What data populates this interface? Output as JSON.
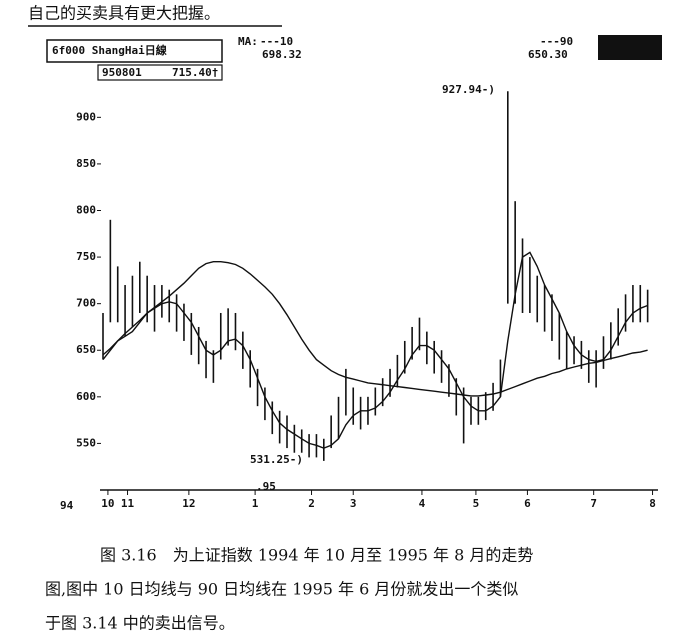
{
  "intro_text": "自己的买卖具有更大把握。",
  "chart_data": {
    "type": "range-bar",
    "header": {
      "symbol": "6f000  ShangHai日線",
      "date": "950801",
      "close": "715.40†",
      "ma_prefix": "MA:"
    },
    "year_labels": [
      "94",
      ".95"
    ],
    "annotations": [
      "927.94-)",
      "531.25-)"
    ],
    "x": [
      0,
      3,
      6,
      9,
      12,
      15,
      18,
      21,
      24,
      27,
      30,
      33,
      36,
      39,
      42,
      45,
      48,
      51,
      54,
      57,
      60,
      63,
      66,
      69,
      72,
      75,
      78,
      81,
      84,
      87,
      90,
      93,
      96,
      99,
      102,
      105,
      108,
      111,
      114,
      117,
      120,
      123,
      126,
      129,
      132,
      135,
      138,
      141,
      144,
      147,
      150,
      153,
      156,
      159,
      162,
      165,
      168,
      171,
      174,
      177,
      180,
      183,
      186,
      189,
      192,
      195,
      198,
      201,
      204,
      207,
      210,
      213,
      216,
      219,
      222
    ],
    "high": [
      690,
      790,
      740,
      720,
      730,
      745,
      730,
      720,
      720,
      715,
      710,
      700,
      690,
      675,
      660,
      650,
      690,
      695,
      690,
      670,
      650,
      630,
      610,
      595,
      585,
      580,
      570,
      565,
      560,
      560,
      555,
      580,
      600,
      630,
      610,
      600,
      600,
      610,
      620,
      630,
      645,
      660,
      675,
      685,
      670,
      660,
      650,
      635,
      620,
      610,
      600,
      600,
      605,
      615,
      640,
      927.94,
      810,
      770,
      750,
      730,
      720,
      710,
      690,
      670,
      665,
      660,
      650,
      650,
      665,
      680,
      695,
      710,
      720,
      720,
      715
    ],
    "low": [
      640,
      680,
      680,
      665,
      675,
      690,
      680,
      670,
      685,
      680,
      670,
      660,
      645,
      635,
      620,
      615,
      640,
      655,
      650,
      630,
      610,
      590,
      575,
      560,
      550,
      545,
      540,
      540,
      535,
      535,
      531.25,
      545,
      555,
      580,
      570,
      565,
      570,
      580,
      590,
      600,
      610,
      625,
      640,
      650,
      635,
      625,
      615,
      600,
      580,
      550,
      570,
      570,
      575,
      585,
      600,
      700,
      700,
      690,
      690,
      680,
      670,
      660,
      640,
      630,
      635,
      630,
      615,
      610,
      630,
      640,
      655,
      670,
      680,
      680,
      680
    ],
    "color": "#111111",
    "series": [
      {
        "name": "---10",
        "current": "698.32",
        "color": "#111111",
        "values": [
          640,
          650,
          660,
          665,
          670,
          680,
          690,
          695,
          700,
          702,
          700,
          690,
          680,
          665,
          650,
          645,
          650,
          660,
          662,
          655,
          640,
          620,
          600,
          585,
          572,
          565,
          560,
          555,
          550,
          548,
          545,
          548,
          555,
          570,
          580,
          585,
          585,
          588,
          595,
          605,
          618,
          630,
          645,
          655,
          655,
          650,
          640,
          630,
          615,
          600,
          590,
          585,
          585,
          590,
          600,
          660,
          710,
          750,
          755,
          740,
          720,
          705,
          690,
          670,
          655,
          645,
          640,
          638,
          640,
          650,
          665,
          680,
          690,
          695,
          698
        ]
      },
      {
        "name": "---90",
        "current": "650.30",
        "color": "#111111",
        "values": [
          645,
          652,
          660,
          668,
          675,
          682,
          690,
          696,
          702,
          708,
          715,
          722,
          730,
          738,
          743,
          745,
          745,
          744,
          742,
          738,
          732,
          725,
          718,
          710,
          700,
          688,
          675,
          662,
          650,
          640,
          634,
          628,
          624,
          621,
          619,
          617,
          615,
          614,
          613,
          612,
          611,
          610,
          609,
          608,
          607,
          606,
          605,
          604,
          603,
          602,
          601,
          601,
          602,
          603,
          605,
          608,
          611,
          614,
          617,
          620,
          622,
          625,
          627,
          630,
          632,
          634,
          636,
          637,
          639,
          641,
          643,
          645,
          647,
          648,
          650
        ]
      }
    ],
    "xlim": [
      0,
      225
    ],
    "xticks": [
      {
        "value": 2,
        "label": "10"
      },
      {
        "value": 10,
        "label": "11"
      },
      {
        "value": 35,
        "label": "12"
      },
      {
        "value": 62,
        "label": "1"
      },
      {
        "value": 85,
        "label": "2"
      },
      {
        "value": 102,
        "label": "3"
      },
      {
        "value": 130,
        "label": "4"
      },
      {
        "value": 152,
        "label": "5"
      },
      {
        "value": 173,
        "label": "6"
      },
      {
        "value": 200,
        "label": "7"
      },
      {
        "value": 224,
        "label": "8"
      }
    ],
    "ylim": [
      500,
      983
    ],
    "yticks": [
      550,
      600,
      650,
      700,
      750,
      800,
      850,
      900
    ],
    "grid": false
  },
  "caption": [
    "图 3.16　为上证指数 1994 年 10 月至 1995 年 8 月的走势",
    "图,图中 10 日均线与 90 日均线在 1995 年 6 月份就发出一个类似",
    "于图 3.14 中的卖出信号。"
  ]
}
